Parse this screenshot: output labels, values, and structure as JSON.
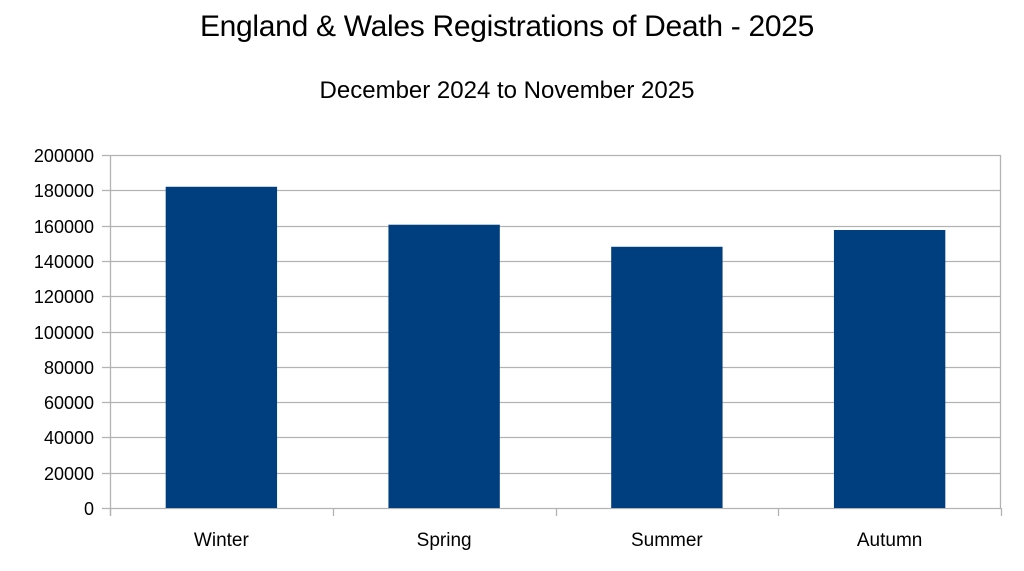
{
  "chart_data": {
    "type": "bar",
    "title": "England & Wales Registrations of Death - 2025",
    "subtitle": "December 2024 to November 2025",
    "xlabel": "",
    "ylabel": "",
    "categories": [
      "Winter",
      "Spring",
      "Summer",
      "Autumn"
    ],
    "values": [
      182000,
      160500,
      148000,
      157500
    ],
    "ylim": [
      0,
      200000
    ],
    "yticks": [
      "0",
      "20000",
      "40000",
      "60000",
      "80000",
      "100000",
      "120000",
      "140000",
      "160000",
      "180000",
      "200000"
    ],
    "grid": true,
    "legend": "none",
    "bar_color": "#003f7f",
    "grid_color": "#b3b3b3"
  }
}
